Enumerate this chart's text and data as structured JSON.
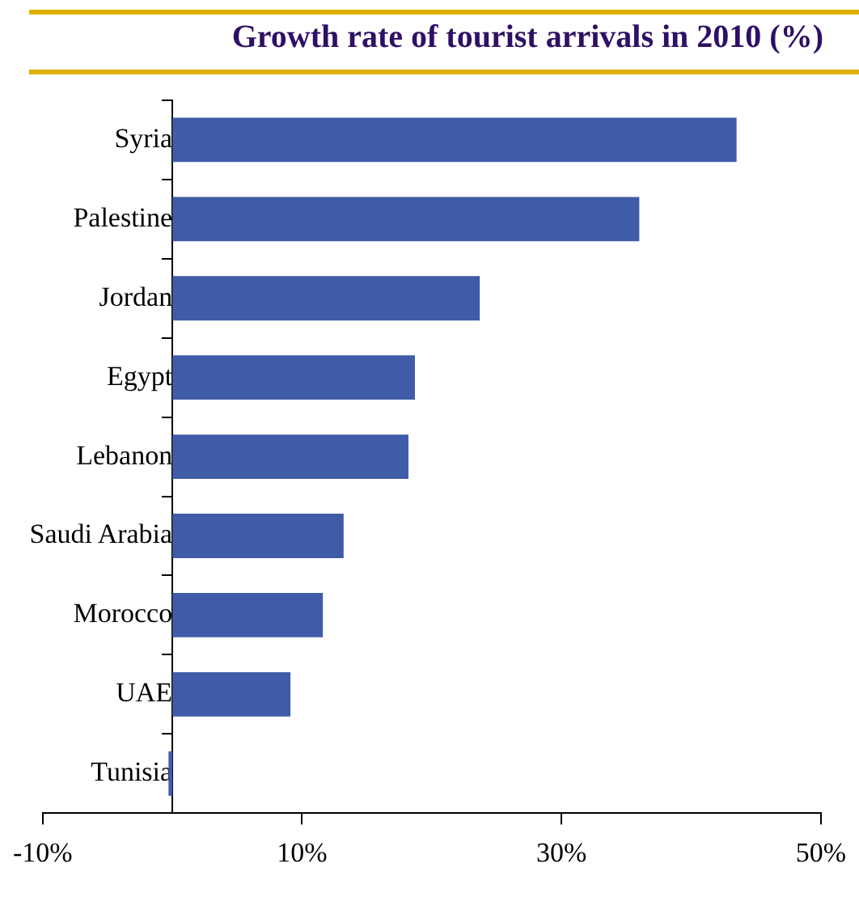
{
  "chart_data": {
    "type": "bar",
    "orientation": "horizontal",
    "title": "Growth rate of tourist arrivals in 2010 (%)",
    "categories": [
      "Syria",
      "Palestine",
      "Jordan",
      "Egypt",
      "Lebanon",
      "Saudi Arabia",
      "Morocco",
      "UAE",
      "Tunisia"
    ],
    "values": [
      43.5,
      36.0,
      23.7,
      18.7,
      18.2,
      13.2,
      11.6,
      9.1,
      -0.3
    ],
    "color": "#405ca8",
    "xlim": [
      -10,
      50
    ],
    "xticks": [
      {
        "value": -10,
        "label": "-10%"
      },
      {
        "value": 10,
        "label": "10%"
      },
      {
        "value": 30,
        "label": "30%"
      },
      {
        "value": 50,
        "label": "50%"
      }
    ],
    "grid": false,
    "legend": false
  }
}
